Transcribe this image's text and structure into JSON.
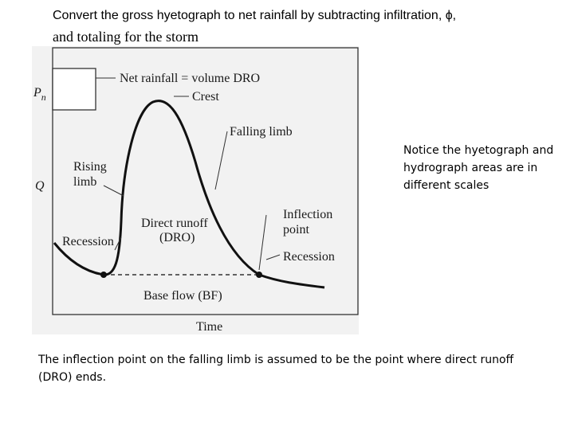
{
  "title": {
    "line1": "Convert the gross hyetograph to net rainfall by subtracting infiltration, ϕ,",
    "line2": "and totaling for the storm"
  },
  "figure": {
    "pn_label": "P",
    "pn_subscript": "n",
    "q_label": "Q",
    "net_rainfall": "Net rainfall = volume DRO",
    "crest": "Crest",
    "falling_limb": "Falling limb",
    "rising_limb_line1": "Rising",
    "rising_limb_line2": "limb",
    "direct_runoff_line1": "Direct runoff",
    "direct_runoff_line2": "(DRO)",
    "inflection_line1": "Inflection",
    "inflection_line2": "point",
    "recession_left": "Recession",
    "recession_right": "Recession",
    "base_flow": "Base flow (BF)",
    "time": "Time"
  },
  "note": "Notice the hyetograph and hydrograph areas are in different scales",
  "caption": "The inflection point on the falling limb is assumed to be the point where direct runoff (DRO) ends."
}
